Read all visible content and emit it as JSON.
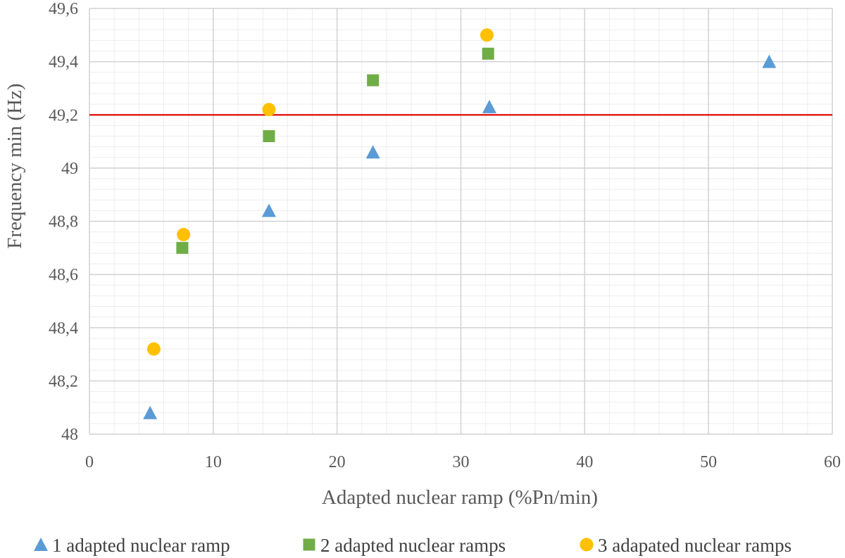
{
  "chart_data": {
    "type": "scatter",
    "title": "",
    "xlabel": "Adapted nuclear ramp (%Pn/min)",
    "ylabel": "Frequency min (Hz)",
    "xlim": [
      0,
      60
    ],
    "ylim": [
      48,
      49.6
    ],
    "x_ticks": [
      0,
      10,
      20,
      30,
      40,
      50,
      60
    ],
    "x_tick_labels": [
      "0",
      "10",
      "20",
      "30",
      "40",
      "50",
      "60"
    ],
    "y_ticks": [
      48,
      48.2,
      48.4,
      48.6,
      48.8,
      49,
      49.2,
      49.4,
      49.6
    ],
    "y_tick_labels": [
      "48",
      "48,2",
      "48,4",
      "48,6",
      "48,8",
      "49",
      "49,2",
      "49,4",
      "49,6"
    ],
    "grid": true,
    "legend_position": "bottom",
    "series": [
      {
        "name": "1 adapted nuclear ramp",
        "marker": "triangle",
        "color": "#5B9BD5",
        "points": [
          [
            4.9,
            48.08
          ],
          [
            14.5,
            48.84
          ],
          [
            22.9,
            49.06
          ],
          [
            32.3,
            49.23
          ],
          [
            54.9,
            49.4
          ]
        ]
      },
      {
        "name": "2 adapted nuclear ramps",
        "marker": "square",
        "color": "#70AD47",
        "points": [
          [
            7.5,
            48.7
          ],
          [
            14.5,
            49.12
          ],
          [
            22.9,
            49.33
          ],
          [
            32.2,
            49.43
          ]
        ]
      },
      {
        "name": "3 adapated nuclear ramps",
        "marker": "circle",
        "color": "#FFC000",
        "points": [
          [
            5.2,
            48.32
          ],
          [
            7.6,
            48.75
          ],
          [
            14.5,
            49.22
          ],
          [
            32.1,
            49.5
          ]
        ]
      }
    ],
    "reference_line": {
      "y": 49.2,
      "color": "#E41E1E"
    }
  }
}
